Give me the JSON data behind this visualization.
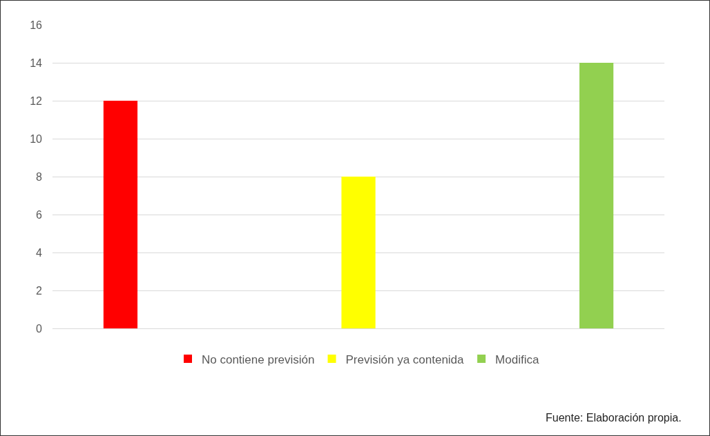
{
  "chart_data": {
    "type": "bar",
    "categories": [
      null,
      null,
      null
    ],
    "series": [
      {
        "name": "No contiene previsión",
        "color": "#ff0000",
        "values": [
          12,
          null,
          null
        ]
      },
      {
        "name": "Previsión ya contenida",
        "color": "#ffff00",
        "values": [
          null,
          8,
          null
        ]
      },
      {
        "name": "Modifica",
        "color": "#92d050",
        "values": [
          null,
          null,
          14
        ]
      }
    ],
    "ylim": [
      0,
      16
    ],
    "yticks": [
      0,
      2,
      4,
      6,
      8,
      10,
      12,
      14,
      16
    ],
    "grid": "y",
    "legend": "bottom",
    "tick_labels": "y",
    "annotations": [
      "Fuente: Elaboración propia."
    ]
  }
}
